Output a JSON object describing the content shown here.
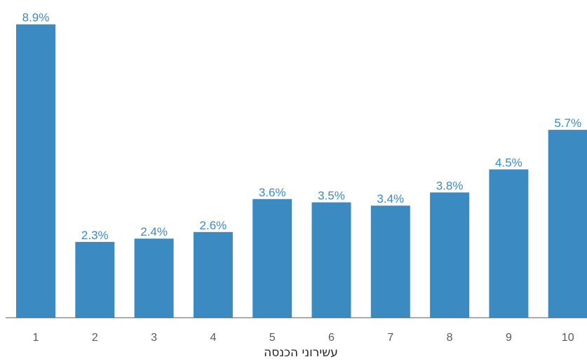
{
  "chart_data": {
    "type": "bar",
    "categories": [
      "1",
      "2",
      "3",
      "4",
      "5",
      "6",
      "7",
      "8",
      "9",
      "10"
    ],
    "values": [
      8.9,
      2.3,
      2.4,
      2.6,
      3.6,
      3.5,
      3.4,
      3.8,
      4.5,
      5.7
    ],
    "value_labels": [
      "8.9%",
      "2.3%",
      "2.4%",
      "2.6%",
      "3.6%",
      "3.5%",
      "3.4%",
      "3.8%",
      "4.5%",
      "5.7%"
    ],
    "xlabel": "עשירוני הכנסה",
    "ylabel": "",
    "ylim": [
      0,
      9.5
    ],
    "grid": false,
    "legend": "none",
    "bar_color": "#3b8bc2",
    "label_color": "#3b8bc2"
  }
}
